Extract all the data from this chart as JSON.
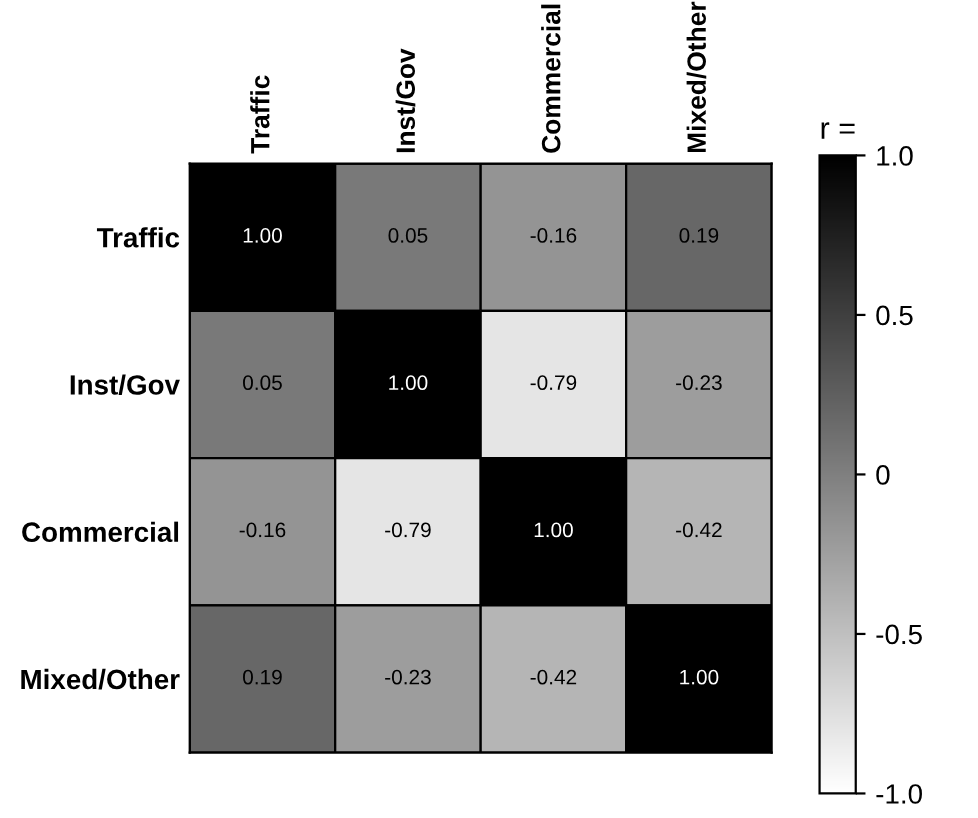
{
  "chart_data": {
    "type": "heatmap",
    "categories": [
      "Traffic",
      "Inst/Gov",
      "Commercial",
      "Mixed/Other"
    ],
    "y_categories": [
      "Traffic",
      "Inst/Gov",
      "Commercial",
      "Mixed/Other"
    ],
    "cells": [
      [
        1.0,
        0.05,
        -0.16,
        0.19
      ],
      [
        0.05,
        1.0,
        -0.79,
        -0.23
      ],
      [
        -0.16,
        -0.79,
        1.0,
        -0.42
      ],
      [
        0.19,
        -0.23,
        -0.42,
        1.0
      ]
    ],
    "data_labels": true,
    "cell_labels": [
      [
        "1.00",
        "0.05",
        "-0.16",
        "0.19"
      ],
      [
        "0.05",
        "1.00",
        "-0.79",
        "-0.23"
      ],
      [
        "-0.16",
        "-0.79",
        "1.00",
        "-0.42"
      ],
      [
        "0.19",
        "-0.23",
        "-0.42",
        "1.00"
      ]
    ],
    "clabel": "r =",
    "clim": [
      -1,
      1
    ],
    "cticks": [
      {
        "value": 1,
        "label": "1.0"
      },
      {
        "value": 0.5,
        "label": "0.5"
      },
      {
        "value": 0,
        "label": "0"
      },
      {
        "value": -0.5,
        "label": "-0.5"
      },
      {
        "value": -1,
        "label": "-1.0"
      }
    ]
  }
}
